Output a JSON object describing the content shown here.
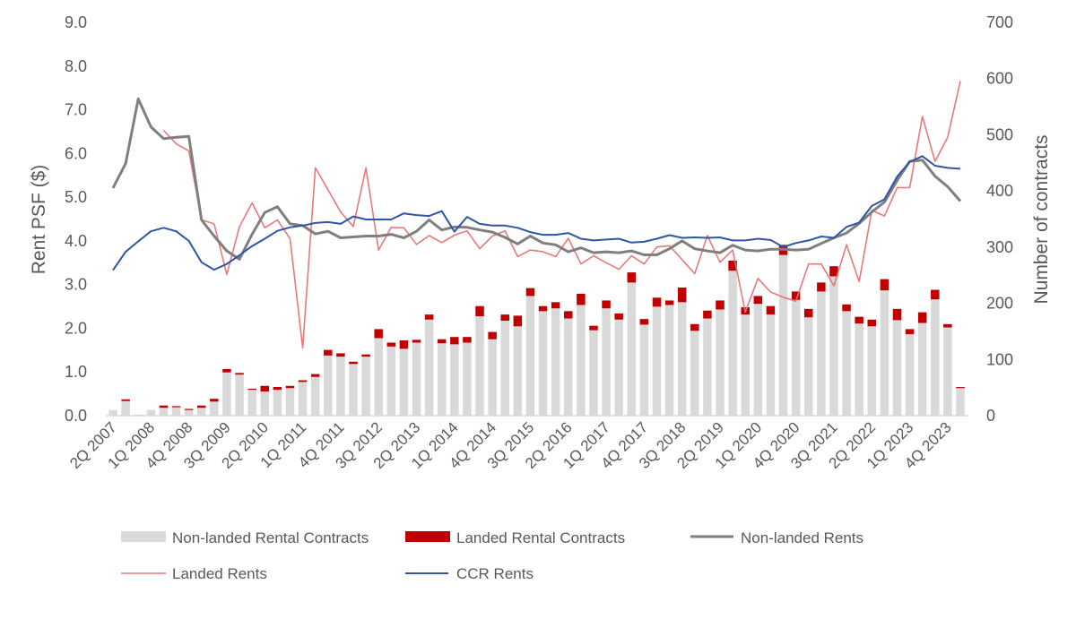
{
  "chart_data": {
    "type": "bar+line",
    "left_axis": {
      "label": "Rent PSF ($)",
      "range": [
        0,
        9
      ],
      "ticks": [
        "0.0",
        "1.0",
        "2.0",
        "3.0",
        "4.0",
        "5.0",
        "6.0",
        "7.0",
        "8.0",
        "9.0"
      ]
    },
    "right_axis": {
      "label": "Number of contracts",
      "range": [
        0,
        700
      ],
      "ticks": [
        "0",
        "100",
        "200",
        "300",
        "400",
        "500",
        "600",
        "700"
      ]
    },
    "grid": false,
    "legend_position": "bottom",
    "categories": [
      "2Q 2007",
      "3Q 2007",
      "4Q 2007",
      "1Q 2008",
      "2Q 2008",
      "3Q 2008",
      "4Q 2008",
      "1Q 2009",
      "2Q 2009",
      "3Q 2009",
      "4Q 2009",
      "1Q 2010",
      "2Q 2010",
      "3Q 2010",
      "4Q 2010",
      "1Q 2011",
      "2Q 2011",
      "3Q 2011",
      "4Q 2011",
      "1Q 2012",
      "2Q 2012",
      "3Q 2012",
      "4Q 2012",
      "1Q 2013",
      "2Q 2013",
      "3Q 2013",
      "4Q 2013",
      "1Q 2014",
      "2Q 2014",
      "3Q 2014",
      "4Q 2014",
      "1Q 2015",
      "2Q 2015",
      "3Q 2015",
      "4Q 2015",
      "1Q 2016",
      "2Q 2016",
      "3Q 2016",
      "4Q 2016",
      "1Q 2017",
      "2Q 2017",
      "3Q 2017",
      "4Q 2017",
      "1Q 2018",
      "2Q 2018",
      "3Q 2018",
      "4Q 2018",
      "1Q 2019",
      "2Q 2019",
      "3Q 2019",
      "4Q 2019",
      "1Q 2020",
      "2Q 2020",
      "3Q 2020",
      "4Q 2020",
      "1Q 2021",
      "2Q 2021",
      "3Q 2021",
      "4Q 2021",
      "1Q 2022",
      "2Q 2022",
      "3Q 2022",
      "4Q 2022",
      "1Q 2023",
      "2Q 2023",
      "3Q 2023",
      "4Q 2023",
      "1Q 2024"
    ],
    "tick_labels": [
      "2Q 2007",
      "1Q 2008",
      "4Q 2008",
      "3Q 2009",
      "2Q 2010",
      "1Q 2011",
      "4Q 2011",
      "3Q 2012",
      "2Q 2013",
      "1Q 2014",
      "4Q 2014",
      "3Q 2015",
      "2Q 2016",
      "1Q 2017",
      "4Q 2017",
      "3Q 2018",
      "2Q 2019",
      "1Q 2020",
      "4Q 2020",
      "3Q 2021",
      "2Q 2022",
      "1Q 2023",
      "4Q 2023"
    ],
    "series": [
      {
        "name": "Non-landed Rental Contracts",
        "type": "bar",
        "axis": "right",
        "color": "#d9d9d9",
        "values": [
          10,
          26,
          2,
          10,
          14,
          15,
          10,
          14,
          25,
          77,
          73,
          46,
          43,
          46,
          49,
          60,
          69,
          107,
          105,
          92,
          105,
          138,
          123,
          119,
          130,
          171,
          129,
          127,
          130,
          177,
          136,
          169,
          159,
          213,
          186,
          191,
          173,
          197,
          152,
          191,
          171,
          237,
          162,
          194,
          197,
          202,
          151,
          173,
          189,
          258,
          180,
          199,
          180,
          286,
          206,
          175,
          221,
          248,
          186,
          164,
          159,
          223,
          170,
          145,
          165,
          207,
          157,
          49
        ]
      },
      {
        "name": "Landed Rental Contracts",
        "type": "bar",
        "stacked": true,
        "axis": "right",
        "color": "#c00000",
        "values": [
          0,
          3,
          0,
          0,
          4,
          2,
          2,
          4,
          5,
          6,
          3,
          2,
          10,
          5,
          4,
          3,
          5,
          10,
          6,
          4,
          4,
          16,
          7,
          15,
          5,
          9,
          7,
          13,
          10,
          18,
          13,
          11,
          19,
          14,
          9,
          11,
          13,
          20,
          8,
          14,
          11,
          18,
          10,
          16,
          8,
          26,
          12,
          14,
          16,
          18,
          13,
          14,
          15,
          18,
          15,
          15,
          16,
          18,
          12,
          12,
          12,
          20,
          20,
          9,
          19,
          17,
          6,
          2
        ]
      },
      {
        "name": "Non-landed Rents",
        "type": "line",
        "axis": "left",
        "color": "#7f7f7f",
        "values": [
          5.21,
          5.77,
          7.25,
          6.61,
          6.34,
          6.37,
          6.39,
          4.48,
          4.11,
          3.77,
          3.58,
          4.15,
          4.65,
          4.78,
          4.39,
          4.35,
          4.16,
          4.22,
          4.07,
          4.09,
          4.11,
          4.11,
          4.15,
          4.07,
          4.22,
          4.48,
          4.25,
          4.32,
          4.31,
          4.25,
          4.2,
          4.08,
          3.93,
          4.11,
          3.95,
          3.91,
          3.75,
          3.84,
          3.73,
          3.75,
          3.73,
          3.77,
          3.68,
          3.68,
          3.82,
          4.0,
          3.82,
          3.77,
          3.73,
          3.9,
          3.79,
          3.77,
          3.81,
          3.81,
          3.79,
          3.81,
          3.94,
          4.07,
          4.18,
          4.4,
          4.66,
          4.89,
          5.38,
          5.82,
          5.85,
          5.48,
          5.24,
          4.91
        ]
      },
      {
        "name": "Landed Rents",
        "type": "line",
        "axis": "left",
        "color": "#e57373",
        "values": [
          null,
          null,
          null,
          null,
          6.53,
          6.22,
          6.06,
          4.48,
          4.39,
          3.23,
          4.32,
          4.87,
          4.3,
          4.48,
          4.05,
          1.55,
          5.67,
          5.17,
          4.66,
          4.33,
          5.67,
          3.79,
          4.31,
          4.3,
          3.92,
          4.12,
          3.96,
          4.13,
          4.23,
          3.82,
          4.11,
          4.23,
          3.64,
          3.79,
          3.75,
          3.64,
          4.06,
          3.47,
          3.66,
          3.5,
          3.35,
          3.66,
          3.47,
          3.86,
          3.89,
          3.57,
          3.25,
          4.12,
          3.51,
          3.79,
          2.37,
          3.14,
          2.83,
          2.71,
          2.62,
          3.47,
          3.47,
          2.97,
          3.91,
          3.07,
          4.7,
          4.57,
          5.22,
          5.22,
          6.85,
          5.82,
          6.37,
          7.66
        ]
      },
      {
        "name": "CCR Rents",
        "type": "line",
        "axis": "left",
        "color": "#2f55a4",
        "values": [
          3.33,
          3.75,
          3.99,
          4.22,
          4.3,
          4.22,
          4.0,
          3.51,
          3.34,
          3.47,
          3.67,
          3.88,
          4.05,
          4.23,
          4.31,
          4.35,
          4.41,
          4.43,
          4.39,
          4.56,
          4.49,
          4.49,
          4.49,
          4.63,
          4.59,
          4.57,
          4.68,
          4.21,
          4.55,
          4.39,
          4.35,
          4.35,
          4.3,
          4.2,
          4.14,
          4.14,
          4.18,
          4.05,
          4.01,
          4.03,
          4.05,
          3.96,
          3.98,
          4.05,
          4.13,
          4.07,
          4.08,
          4.07,
          4.08,
          4.01,
          4.01,
          4.05,
          4.02,
          3.86,
          3.95,
          4.01,
          4.1,
          4.07,
          4.32,
          4.42,
          4.8,
          4.95,
          5.47,
          5.81,
          5.94,
          5.72,
          5.67,
          5.65
        ]
      }
    ]
  }
}
